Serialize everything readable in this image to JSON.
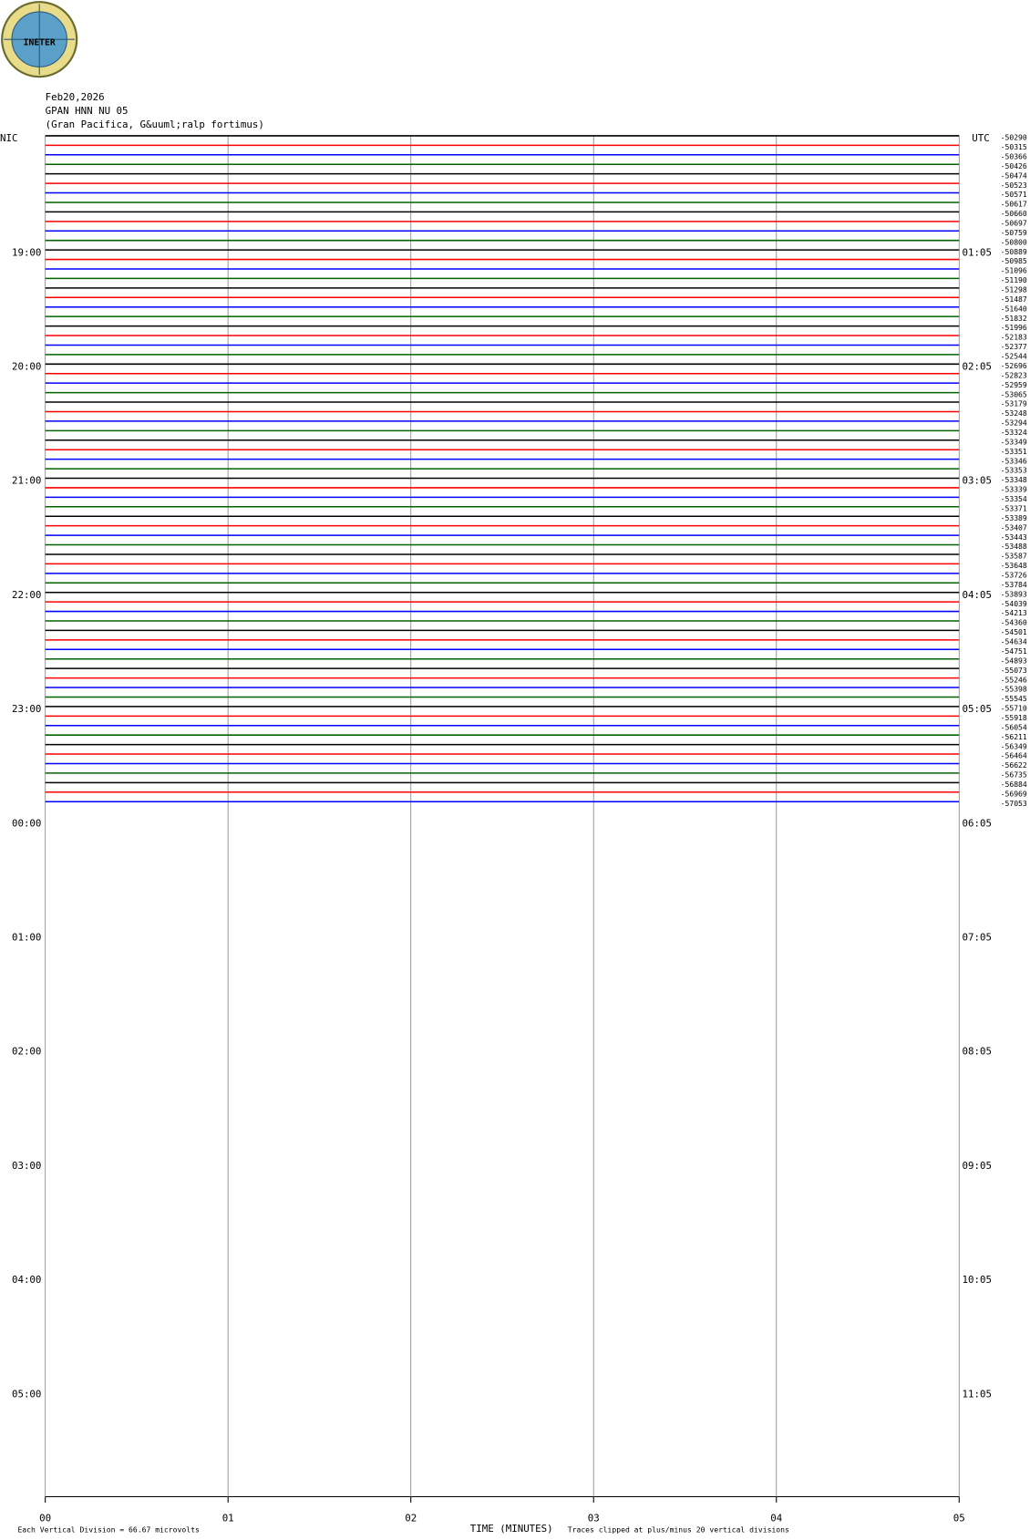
{
  "header": {
    "logo": "INETER",
    "date": "Feb20,2026",
    "station": "GPAN HNN NU 05",
    "location": "(Gran Pacifica, G&uuml;ralp fortimus)"
  },
  "chart_data": {
    "type": "helicorder",
    "left_label": "NIC",
    "right_label": "UTC",
    "left_times": [
      "19:00",
      "20:00",
      "21:00",
      "22:00",
      "23:00",
      "00:00",
      "01:00",
      "02:00",
      "03:00",
      "04:00",
      "05:00"
    ],
    "right_times": [
      "01:05",
      "02:05",
      "03:05",
      "04:05",
      "05:05",
      "06:05",
      "07:05",
      "08:05",
      "09:05",
      "10:05",
      "11:05"
    ],
    "x_label": "TIME (MINUTES)",
    "xlim": [
      0,
      5
    ],
    "xticks": [
      {
        "value": 0,
        "label": "00"
      },
      {
        "value": 1,
        "label": "01"
      },
      {
        "value": 2,
        "label": "02"
      },
      {
        "value": 3,
        "label": "03"
      },
      {
        "value": 4,
        "label": "04"
      },
      {
        "value": 5,
        "label": "05"
      }
    ],
    "trace_colors": [
      "#000000",
      "#ff0000",
      "#0000ff",
      "#006400"
    ],
    "trace_offsets": [
      -50290,
      -50315,
      -50366,
      -50426,
      -50474,
      -50523,
      -50571,
      -50617,
      -50660,
      -50697,
      -50759,
      -50800,
      -50889,
      -50985,
      -51096,
      -51190,
      -51298,
      -51487,
      -51640,
      -51832,
      -51996,
      -52183,
      -52377,
      -52544,
      -52696,
      -52823,
      -52959,
      -53065,
      -53179,
      -53248,
      -53294,
      -53324,
      -53349,
      -53351,
      -53346,
      -53353,
      -53348,
      -53339,
      -53354,
      -53371,
      -53389,
      -53407,
      -53443,
      -53488,
      -53587,
      -53648,
      -53726,
      -53784,
      -53893,
      -54039,
      -54213,
      -54360,
      -54501,
      -54634,
      -54751,
      -54893,
      -55073,
      -55246,
      -55398,
      -55545,
      -55710,
      -55918,
      -56054,
      -56211,
      -56349,
      -56464,
      -56622,
      -56735,
      -56884,
      -56969,
      -57053
    ],
    "footer_left": "Each Vertical Division =   66.67 microvolts",
    "footer_right": "Traces clipped at plus/minus 20 vertical divisions"
  }
}
